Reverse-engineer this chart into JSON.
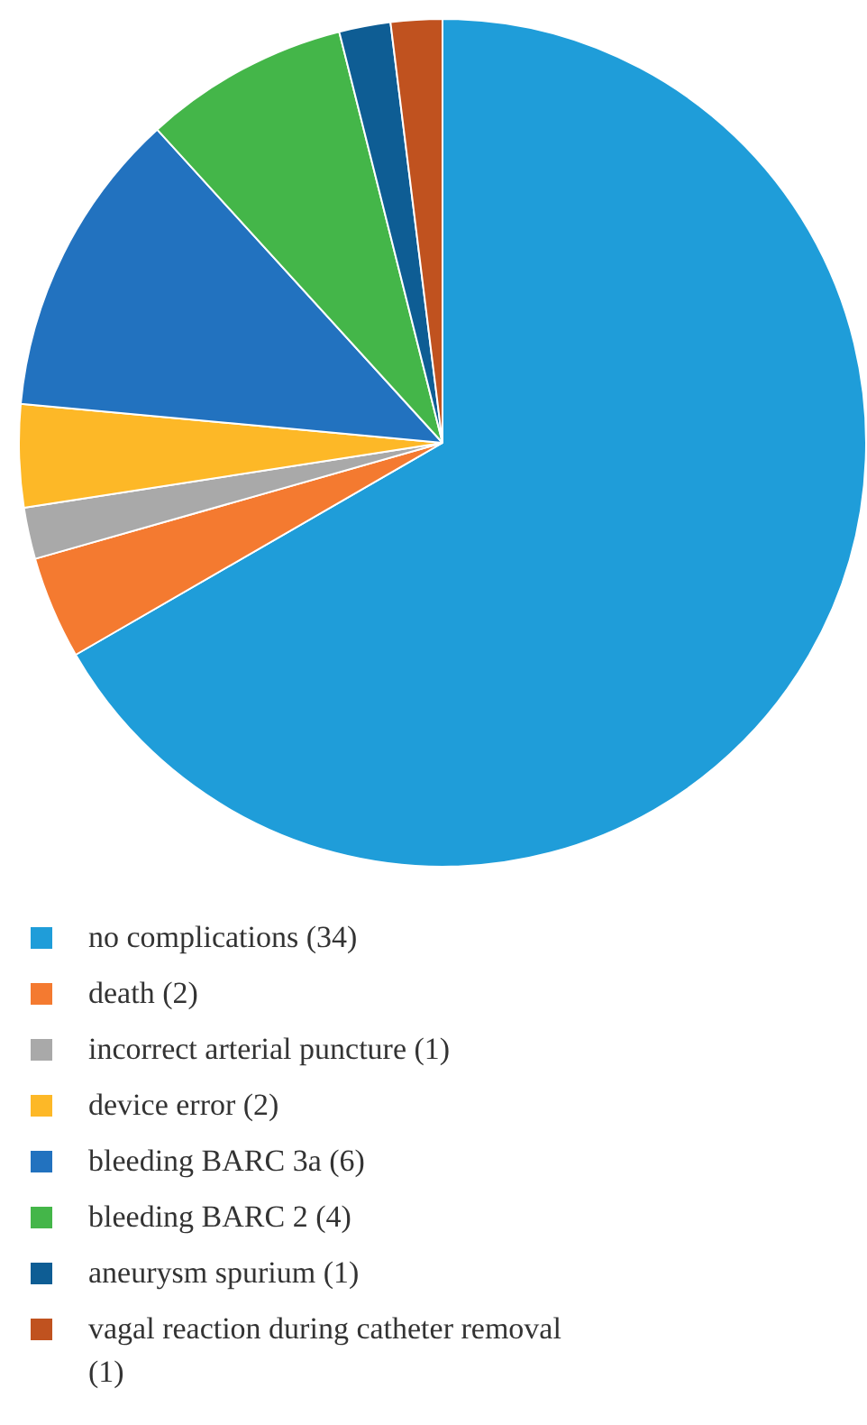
{
  "chart_data": {
    "type": "pie",
    "categories": [
      "no complications (34)",
      "death (2)",
      "incorrect arterial puncture (1)",
      "device error (2)",
      "bleeding BARC 3a (6)",
      "bleeding BARC 2 (4)",
      "aneurysm spurium (1)",
      "vagal reaction during catheter removal (1)"
    ],
    "values": [
      34,
      2,
      1,
      2,
      6,
      4,
      1,
      1
    ],
    "colors": [
      "#1f9dd9",
      "#f47a30",
      "#a9a9a9",
      "#fdb827",
      "#2272bf",
      "#44b649",
      "#0e5d94",
      "#c0521f"
    ],
    "legend": "bottom"
  }
}
